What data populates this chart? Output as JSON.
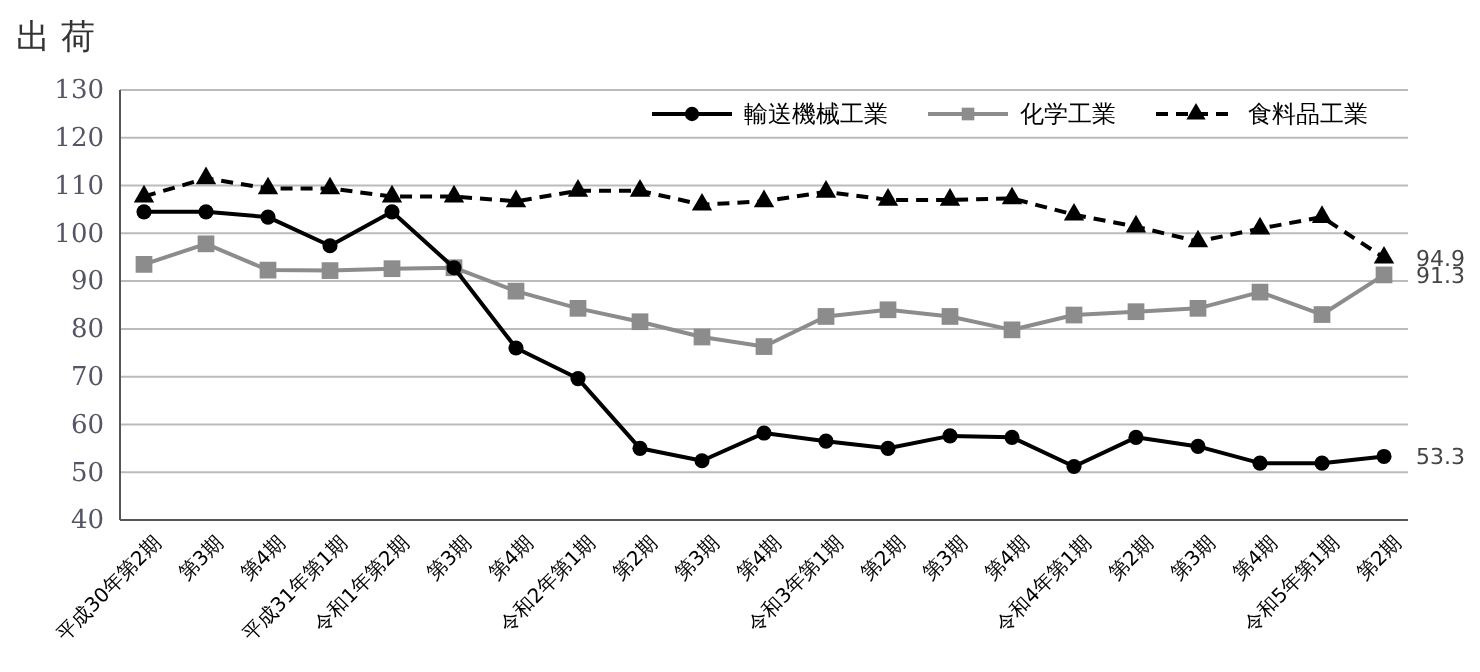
{
  "chart_data": {
    "type": "line",
    "title": "出 荷",
    "categories": [
      "平成30年第2期",
      "第3期",
      "第4期",
      "平成31年第1期",
      "令和1年第2期",
      "第3期",
      "第4期",
      "令和2年第1期",
      "第2期",
      "第3期",
      "第4期",
      "令和3年第1期",
      "第2期",
      "第3期",
      "第4期",
      "令和4年第1期",
      "第2期",
      "第3期",
      "第4期",
      "令和5年第1期",
      "第2期"
    ],
    "series": [
      {
        "name": "輸送機械工業",
        "color": "#000000",
        "marker": "circle",
        "line_style": "solid",
        "values": [
          104.5,
          104.5,
          103.4,
          97.4,
          104.5,
          92.8,
          76,
          69.6,
          55,
          52.4,
          58.2,
          56.5,
          55,
          57.6,
          57.3,
          51.2,
          57.3,
          55.4,
          51.9,
          51.9,
          53.3
        ],
        "value_labels": [
          null,
          null,
          null,
          null,
          null,
          null,
          null,
          null,
          null,
          null,
          null,
          null,
          null,
          null,
          null,
          null,
          null,
          null,
          null,
          null,
          "53.3"
        ]
      },
      {
        "name": "化学工業",
        "color": "#8c8c8c",
        "marker": "square",
        "line_style": "solid",
        "values": [
          93.5,
          97.8,
          92.3,
          92.2,
          92.6,
          92.8,
          87.9,
          84.3,
          81.5,
          78.3,
          76.3,
          82.6,
          84,
          82.6,
          79.8,
          82.9,
          83.6,
          84.3,
          87.7,
          83,
          91.3
        ],
        "value_labels": [
          null,
          null,
          null,
          null,
          null,
          null,
          null,
          null,
          null,
          null,
          null,
          null,
          null,
          null,
          null,
          null,
          null,
          null,
          null,
          null,
          "91.3"
        ]
      },
      {
        "name": "食料品工業",
        "color": "#000000",
        "marker": "triangle",
        "line_style": "dashed",
        "values": [
          107.7,
          111.5,
          109.4,
          109.4,
          107.7,
          107.7,
          106.7,
          108.9,
          108.9,
          106,
          106.7,
          108.7,
          107,
          107,
          107.3,
          103.9,
          101.4,
          98.3,
          101,
          103.4,
          94.9
        ],
        "value_labels": [
          null,
          null,
          null,
          null,
          null,
          null,
          null,
          null,
          null,
          null,
          null,
          null,
          null,
          null,
          null,
          null,
          null,
          null,
          null,
          null,
          "94.9"
        ]
      }
    ],
    "ylim": [
      40,
      130
    ],
    "yticks": [
      40,
      50,
      60,
      70,
      80,
      90,
      100,
      110,
      120,
      130
    ],
    "grid": "y",
    "legend": "top right"
  }
}
